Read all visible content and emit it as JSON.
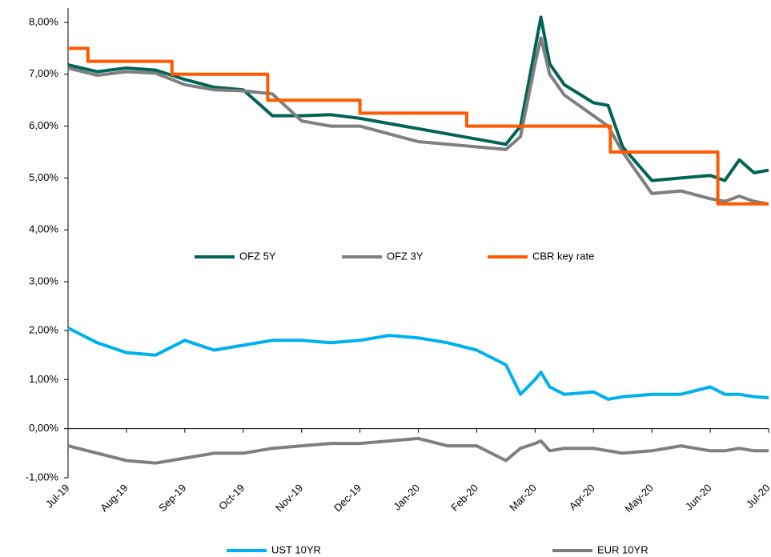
{
  "chart_data": [
    {
      "type": "line",
      "xlim": [
        0,
        12
      ],
      "ylim": [
        3,
        8
      ],
      "yticks": [
        {
          "value": 3,
          "label": "3,00%"
        },
        {
          "value": 4,
          "label": "4,00%"
        },
        {
          "value": 5,
          "label": "5,00%"
        },
        {
          "value": 6,
          "label": "6,00%"
        },
        {
          "value": 7,
          "label": "7,00%"
        },
        {
          "value": 8,
          "label": "8,00%"
        }
      ],
      "series": [
        {
          "name": "OFZ 5Y",
          "color": "#006455",
          "x": [
            0,
            0.5,
            1,
            1.5,
            2,
            2.5,
            3,
            3.5,
            4,
            4.5,
            5,
            5.5,
            6,
            6.5,
            7,
            7.5,
            7.75,
            8,
            8.1,
            8.25,
            8.5,
            9,
            9.25,
            9.5,
            10,
            10.5,
            11,
            11.25,
            11.5,
            11.75,
            12
          ],
          "values": [
            7.18,
            7.05,
            7.12,
            7.08,
            6.9,
            6.75,
            6.7,
            6.2,
            6.2,
            6.22,
            6.15,
            6.05,
            5.95,
            5.85,
            5.75,
            5.65,
            6.0,
            7.5,
            8.1,
            7.2,
            6.8,
            6.45,
            6.4,
            5.6,
            4.95,
            5.0,
            5.05,
            4.95,
            5.35,
            5.1,
            5.15
          ]
        },
        {
          "name": "OFZ 3Y",
          "color": "#7f7f7f",
          "x": [
            0,
            0.5,
            1,
            1.5,
            2,
            2.5,
            3,
            3.5,
            4,
            4.5,
            5,
            5.5,
            6,
            6.5,
            7,
            7.5,
            7.75,
            8,
            8.1,
            8.25,
            8.5,
            9,
            9.25,
            9.5,
            10,
            10.5,
            11,
            11.25,
            11.5,
            11.75,
            12
          ],
          "values": [
            7.12,
            6.98,
            7.05,
            7.02,
            6.8,
            6.7,
            6.68,
            6.62,
            6.1,
            6.0,
            6.0,
            5.85,
            5.7,
            5.65,
            5.6,
            5.55,
            5.8,
            7.2,
            7.7,
            7.0,
            6.6,
            6.2,
            6.0,
            5.5,
            4.7,
            4.75,
            4.6,
            4.55,
            4.65,
            4.55,
            4.5
          ]
        },
        {
          "name": "CBR key rate",
          "color": "#ff5a00",
          "x": [
            0,
            0.34,
            0.34,
            1.78,
            1.78,
            3.42,
            3.42,
            5.0,
            5.0,
            6.83,
            6.83,
            9.29,
            9.29,
            11.13,
            11.13,
            12
          ],
          "values": [
            7.5,
            7.5,
            7.25,
            7.25,
            7.0,
            7.0,
            6.5,
            6.5,
            6.25,
            6.25,
            6.0,
            6.0,
            5.5,
            5.5,
            4.5,
            4.5
          ]
        }
      ]
    },
    {
      "type": "line",
      "xlim": [
        0,
        12
      ],
      "xticks": [
        {
          "value": 0,
          "label": "Jul-19"
        },
        {
          "value": 1,
          "label": "Aug-19"
        },
        {
          "value": 2,
          "label": "Sep-19"
        },
        {
          "value": 3,
          "label": "Oct-19"
        },
        {
          "value": 4,
          "label": "Nov-19"
        },
        {
          "value": 5,
          "label": "Dec-19"
        },
        {
          "value": 6,
          "label": "Jan-20"
        },
        {
          "value": 7,
          "label": "Feb-20"
        },
        {
          "value": 8,
          "label": "Mar-20"
        },
        {
          "value": 9,
          "label": "Apr-20"
        },
        {
          "value": 10,
          "label": "May-20"
        },
        {
          "value": 11,
          "label": "Jun-20"
        },
        {
          "value": 12,
          "label": "Jul-20"
        }
      ],
      "ylim": [
        -1,
        2
      ],
      "yticks": [
        {
          "value": -1,
          "label": "-1,00%"
        },
        {
          "value": 0,
          "label": "0,00%"
        },
        {
          "value": 1,
          "label": "1,00%"
        },
        {
          "value": 2,
          "label": "2,00%"
        }
      ],
      "series": [
        {
          "name": "UST 10YR",
          "color": "#00b0f0",
          "x": [
            0,
            0.5,
            1,
            1.5,
            2,
            2.5,
            3,
            3.5,
            4,
            4.5,
            5,
            5.5,
            6,
            6.5,
            7,
            7.5,
            7.75,
            8,
            8.1,
            8.25,
            8.5,
            9,
            9.25,
            9.5,
            10,
            10.5,
            11,
            11.25,
            11.5,
            11.75,
            12
          ],
          "values": [
            2.05,
            1.75,
            1.55,
            1.5,
            1.8,
            1.6,
            1.7,
            1.8,
            1.8,
            1.75,
            1.8,
            1.9,
            1.85,
            1.75,
            1.6,
            1.3,
            0.7,
            1.0,
            1.15,
            0.85,
            0.7,
            0.75,
            0.6,
            0.65,
            0.7,
            0.7,
            0.85,
            0.7,
            0.7,
            0.65,
            0.63
          ]
        },
        {
          "name": "EUR 10YR",
          "color": "#7f7f7f",
          "x": [
            0,
            0.5,
            1,
            1.5,
            2,
            2.5,
            3,
            3.5,
            4,
            4.5,
            5,
            5.5,
            6,
            6.5,
            7,
            7.5,
            7.75,
            8,
            8.1,
            8.25,
            8.5,
            9,
            9.25,
            9.5,
            10,
            10.5,
            11,
            11.25,
            11.5,
            11.75,
            12
          ],
          "values": [
            -0.35,
            -0.5,
            -0.65,
            -0.7,
            -0.6,
            -0.5,
            -0.5,
            -0.4,
            -0.35,
            -0.3,
            -0.3,
            -0.25,
            -0.2,
            -0.35,
            -0.35,
            -0.65,
            -0.4,
            -0.3,
            -0.25,
            -0.45,
            -0.4,
            -0.4,
            -0.45,
            -0.5,
            -0.45,
            -0.35,
            -0.45,
            -0.45,
            -0.4,
            -0.45,
            -0.45
          ]
        }
      ]
    }
  ]
}
